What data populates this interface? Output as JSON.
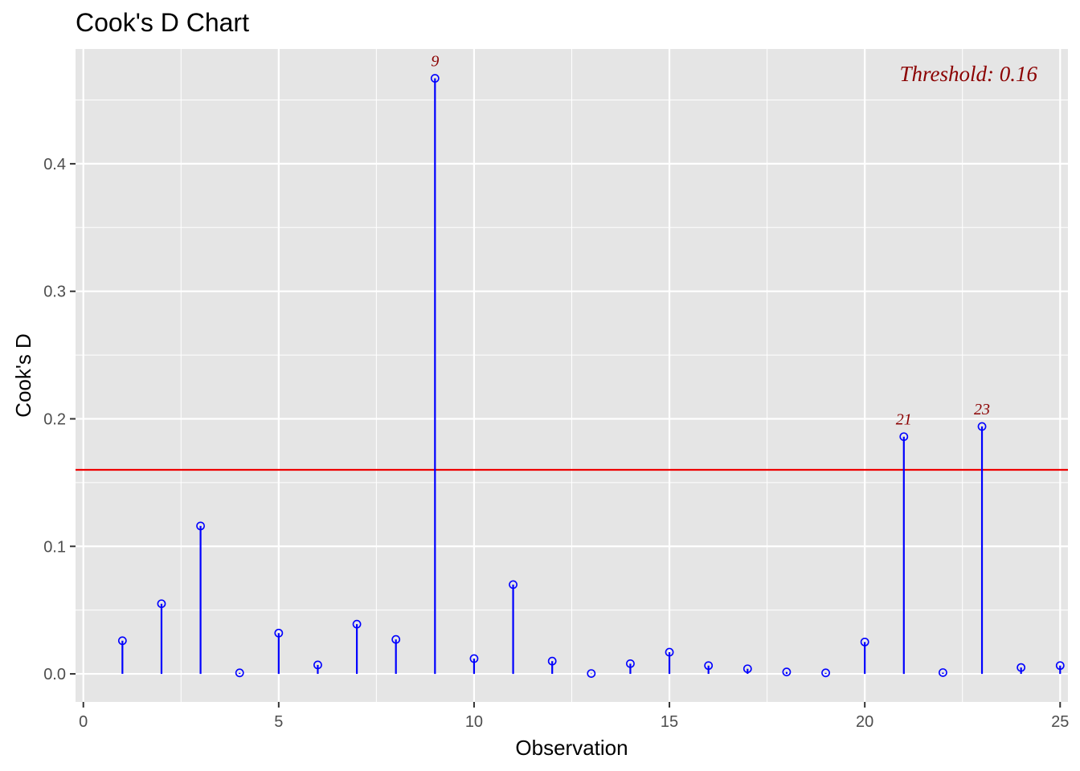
{
  "chart_data": {
    "type": "lollipop",
    "title": "Cook's D Chart",
    "xlabel": "Observation",
    "ylabel": "Cook's D",
    "xlim": [
      -0.2,
      25.2
    ],
    "ylim": [
      -0.022,
      0.49
    ],
    "x_ticks": [
      0,
      5,
      10,
      15,
      20,
      25
    ],
    "y_ticks": [
      0.0,
      0.1,
      0.2,
      0.3,
      0.4
    ],
    "x_tick_labels": [
      "0",
      "5",
      "10",
      "15",
      "20",
      "25"
    ],
    "y_tick_labels": [
      "0.0",
      "0.1",
      "0.2",
      "0.3",
      "0.4"
    ],
    "grid": true,
    "x": [
      1,
      2,
      3,
      4,
      5,
      6,
      7,
      8,
      9,
      10,
      11,
      12,
      13,
      14,
      15,
      16,
      17,
      18,
      19,
      20,
      21,
      22,
      23,
      24,
      25
    ],
    "values": [
      0.026,
      0.055,
      0.116,
      0.0008,
      0.032,
      0.007,
      0.039,
      0.027,
      0.467,
      0.012,
      0.07,
      0.01,
      0.0003,
      0.008,
      0.017,
      0.0065,
      0.004,
      0.0015,
      0.0008,
      0.025,
      0.186,
      0.001,
      0.194,
      0.005,
      0.0065
    ],
    "threshold": 0.16,
    "threshold_label": "Threshold: 0.16",
    "outlier_labels": [
      {
        "x": 9,
        "y": 0.467,
        "text": "9"
      },
      {
        "x": 21,
        "y": 0.186,
        "text": "21"
      },
      {
        "x": 23,
        "y": 0.194,
        "text": "23"
      }
    ],
    "colors": {
      "stem": "#0000ff",
      "point": "#0000ff",
      "threshold": "#ee0000",
      "annotation": "#8b0000",
      "panel": "#e5e5e5",
      "grid": "#ffffff"
    }
  }
}
